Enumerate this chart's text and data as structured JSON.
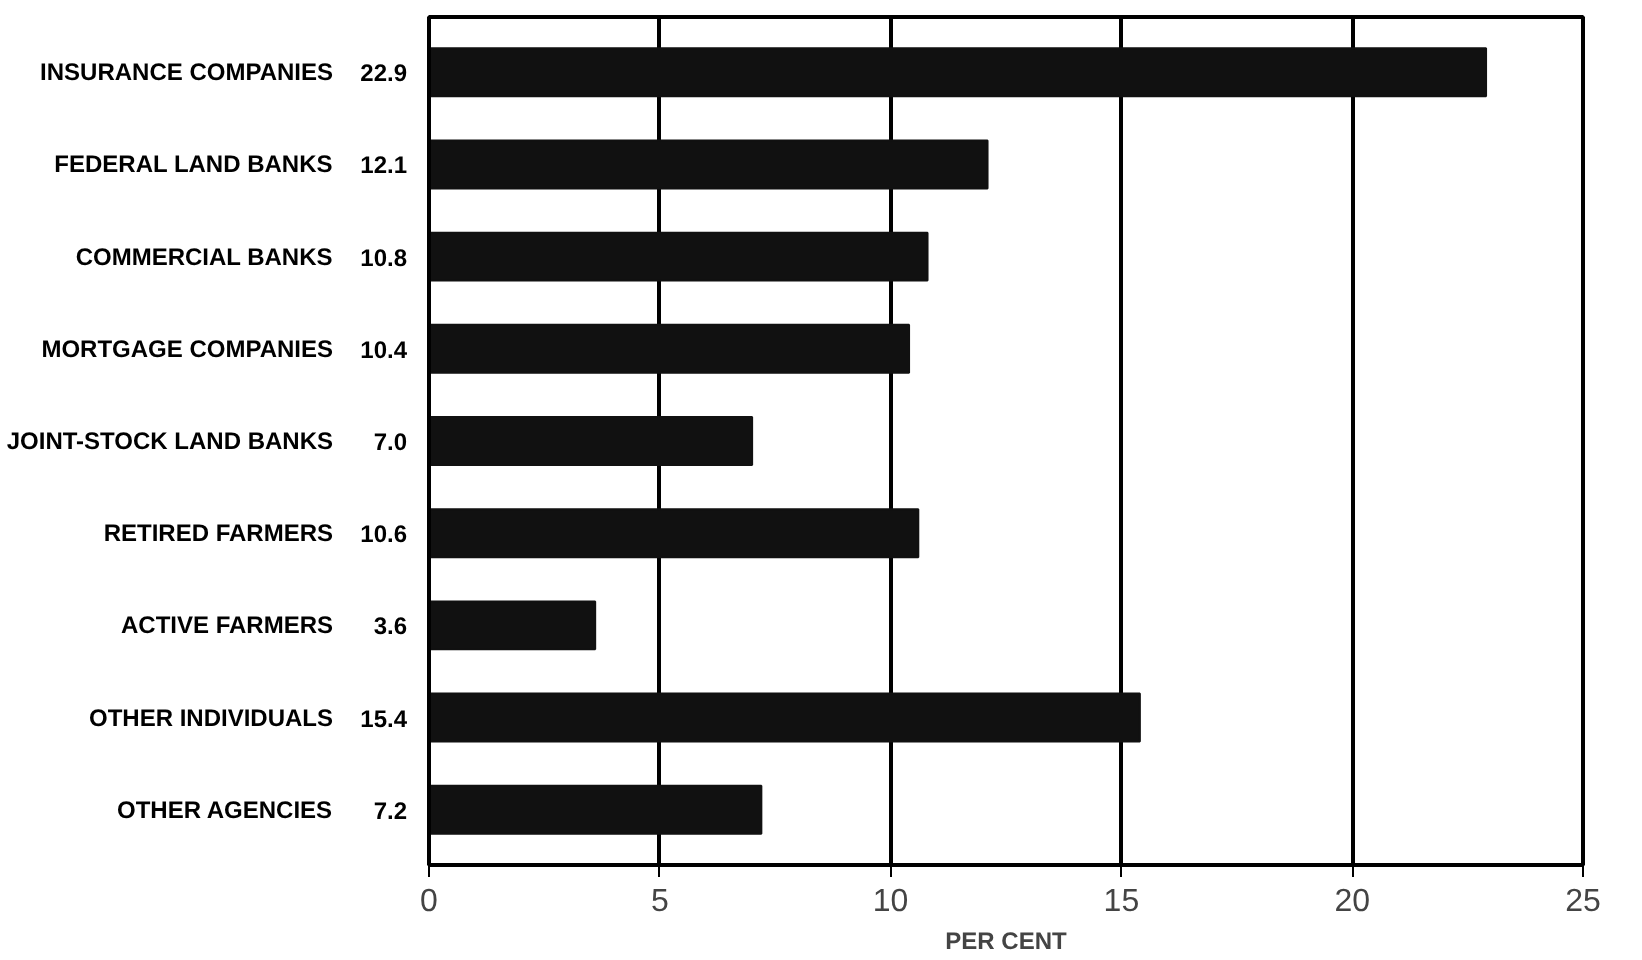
{
  "chart_data": {
    "type": "bar",
    "orientation": "horizontal",
    "xlabel": "PER CENT",
    "categories": [
      "INSURANCE COMPANIES",
      "FEDERAL LAND BANKS",
      "COMMERCIAL BANKS",
      "MORTGAGE COMPANIES",
      "JOINT-STOCK LAND BANKS",
      "RETIRED FARMERS",
      "ACTIVE FARMERS",
      "OTHER INDIVIDUALS",
      "OTHER AGENCIES"
    ],
    "values": [
      22.9,
      12.1,
      10.8,
      10.4,
      7.0,
      10.6,
      3.6,
      15.4,
      7.2
    ],
    "value_labels": [
      "22.9",
      "12.1",
      "10.8",
      "10.4",
      "7.0",
      "10.6",
      "3.6",
      "15.4",
      "7.2"
    ],
    "color": "#111111",
    "xlim": [
      0,
      25
    ],
    "xticks": [
      0,
      5,
      10,
      15,
      20,
      25
    ],
    "grid": "x"
  }
}
